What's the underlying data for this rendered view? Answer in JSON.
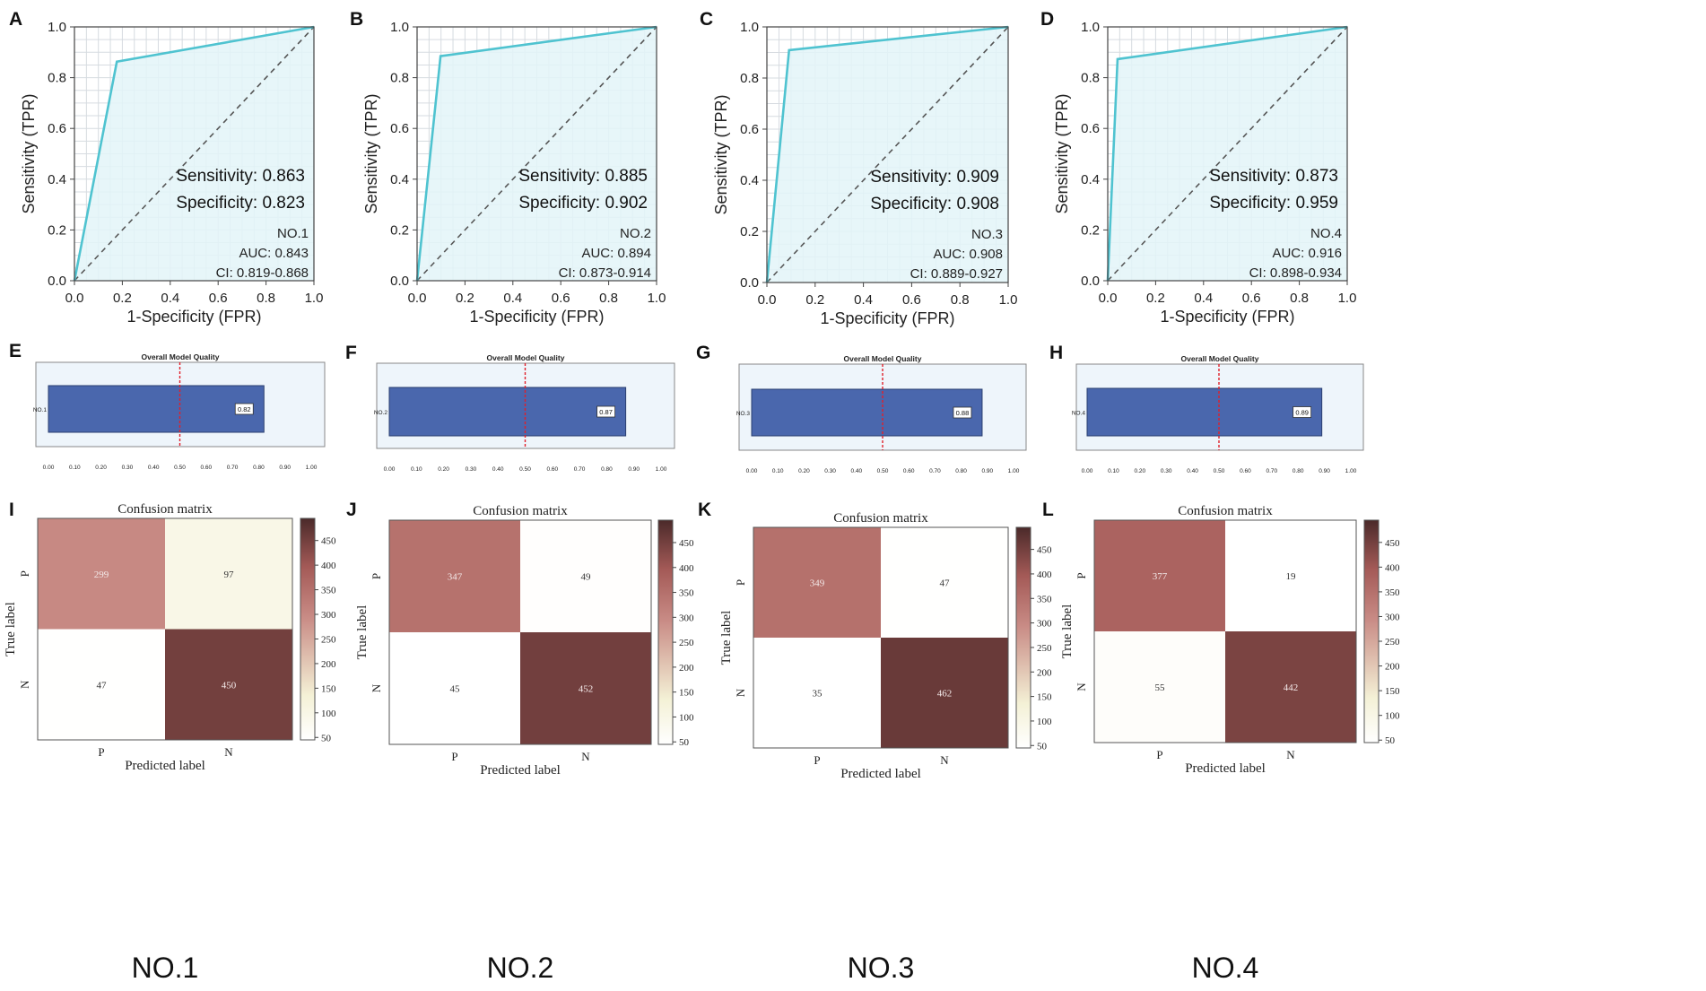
{
  "colors": {
    "roc_line": "#4fc3d0",
    "roc_fill": "#e3f4f8",
    "grid": "#d6dbe0",
    "bar": "#4a67ad",
    "bar_panel": "#eef5fb",
    "cutoff": "#e0202a",
    "cm_colors": [
      "#ffffff",
      "#f4f1d6",
      "#c98c86",
      "#a45a57",
      "#4b2a2a"
    ]
  },
  "roc": {
    "x_label": "1-Specificity (FPR)",
    "y_label": "Sensitivity (TPR)",
    "ticks": [
      "0.0",
      "0.2",
      "0.4",
      "0.6",
      "0.8",
      "1.0"
    ]
  },
  "bars": {
    "title": "Overall Model Quality",
    "ticks": [
      "0.00",
      "0.10",
      "0.20",
      "0.30",
      "0.40",
      "0.50",
      "0.60",
      "0.70",
      "0.80",
      "0.90",
      "1.00"
    ],
    "cutoff": 0.5
  },
  "cm": {
    "title": "Confusion matrix",
    "x_label": "Predicted label",
    "y_label": "True label",
    "labels": [
      "P",
      "N"
    ],
    "colorbar_ticks": [
      "50",
      "100",
      "150",
      "200",
      "250",
      "300",
      "350",
      "400",
      "450"
    ],
    "range": [
      45,
      495
    ]
  },
  "chart_data": [
    {
      "panel": "A",
      "type": "line",
      "title": "",
      "x": [
        0,
        0.177,
        1
      ],
      "y": [
        0,
        0.863,
        1
      ],
      "xlabel": "1-Specificity (FPR)",
      "ylabel": "Sensitivity (TPR)",
      "xlim": [
        0,
        1
      ],
      "ylim": [
        0,
        1
      ],
      "sens_text": "Sensitivity: 0.863",
      "spec_text": "Specificity: 0.823",
      "model": "NO.1",
      "auc_text": "AUC: 0.843",
      "ci_text": "CI: 0.819-0.868"
    },
    {
      "panel": "B",
      "type": "line",
      "title": "",
      "x": [
        0,
        0.098,
        1
      ],
      "y": [
        0,
        0.885,
        1
      ],
      "xlabel": "1-Specificity (FPR)",
      "ylabel": "Sensitivity (TPR)",
      "xlim": [
        0,
        1
      ],
      "ylim": [
        0,
        1
      ],
      "sens_text": "Sensitivity: 0.885",
      "spec_text": "Specificity: 0.902",
      "model": "NO.2",
      "auc_text": "AUC: 0.894",
      "ci_text": "CI: 0.873-0.914"
    },
    {
      "panel": "C",
      "type": "line",
      "title": "",
      "x": [
        0,
        0.092,
        1
      ],
      "y": [
        0,
        0.909,
        1
      ],
      "xlabel": "1-Specificity (FPR)",
      "ylabel": "Sensitivity (TPR)",
      "xlim": [
        0,
        1
      ],
      "ylim": [
        0,
        1
      ],
      "sens_text": "Sensitivity: 0.909",
      "spec_text": "Specificity: 0.908",
      "model": "NO.3",
      "auc_text": "AUC: 0.908",
      "ci_text": "CI: 0.889-0.927"
    },
    {
      "panel": "D",
      "type": "line",
      "title": "",
      "x": [
        0,
        0.041,
        1
      ],
      "y": [
        0,
        0.873,
        1
      ],
      "xlabel": "1-Specificity (FPR)",
      "ylabel": "Sensitivity (TPR)",
      "xlim": [
        0,
        1
      ],
      "ylim": [
        0,
        1
      ],
      "sens_text": "Sensitivity: 0.873",
      "spec_text": "Specificity: 0.959",
      "model": "NO.4",
      "auc_text": "AUC: 0.916",
      "ci_text": "CI: 0.898-0.934"
    },
    {
      "panel": "E",
      "type": "bar",
      "title": "Overall Model Quality",
      "categories": [
        "NO.1"
      ],
      "values": [
        0.82
      ],
      "value_label": "0.82",
      "xlim": [
        0,
        1
      ]
    },
    {
      "panel": "F",
      "type": "bar",
      "title": "Overall Model Quality",
      "categories": [
        "NO.2"
      ],
      "values": [
        0.87
      ],
      "value_label": "0.87",
      "xlim": [
        0,
        1
      ]
    },
    {
      "panel": "G",
      "type": "bar",
      "title": "Overall Model Quality",
      "categories": [
        "NO.3"
      ],
      "values": [
        0.88
      ],
      "value_label": "0.88",
      "xlim": [
        0,
        1
      ]
    },
    {
      "panel": "H",
      "type": "bar",
      "title": "Overall Model Quality",
      "categories": [
        "NO.4"
      ],
      "values": [
        0.89
      ],
      "value_label": "0.89",
      "xlim": [
        0,
        1
      ]
    },
    {
      "panel": "I",
      "type": "heatmap",
      "title": "Confusion matrix",
      "rows": [
        "P",
        "N"
      ],
      "cols": [
        "P",
        "N"
      ],
      "values": [
        [
          299,
          97
        ],
        [
          47,
          450
        ]
      ],
      "xlabel": "Predicted label",
      "ylabel": "True label",
      "caption": "NO.1"
    },
    {
      "panel": "J",
      "type": "heatmap",
      "title": "Confusion matrix",
      "rows": [
        "P",
        "N"
      ],
      "cols": [
        "P",
        "N"
      ],
      "values": [
        [
          347,
          49
        ],
        [
          45,
          452
        ]
      ],
      "xlabel": "Predicted label",
      "ylabel": "True label",
      "caption": "NO.2"
    },
    {
      "panel": "K",
      "type": "heatmap",
      "title": "Confusion matrix",
      "rows": [
        "P",
        "N"
      ],
      "cols": [
        "P",
        "N"
      ],
      "values": [
        [
          349,
          47
        ],
        [
          35,
          462
        ]
      ],
      "xlabel": "Predicted label",
      "ylabel": "True label",
      "caption": "NO.3"
    },
    {
      "panel": "L",
      "type": "heatmap",
      "title": "Confusion matrix",
      "rows": [
        "P",
        "N"
      ],
      "cols": [
        "P",
        "N"
      ],
      "values": [
        [
          377,
          19
        ],
        [
          55,
          442
        ]
      ],
      "xlabel": "Predicted label",
      "ylabel": "True label",
      "caption": "NO.4"
    }
  ]
}
